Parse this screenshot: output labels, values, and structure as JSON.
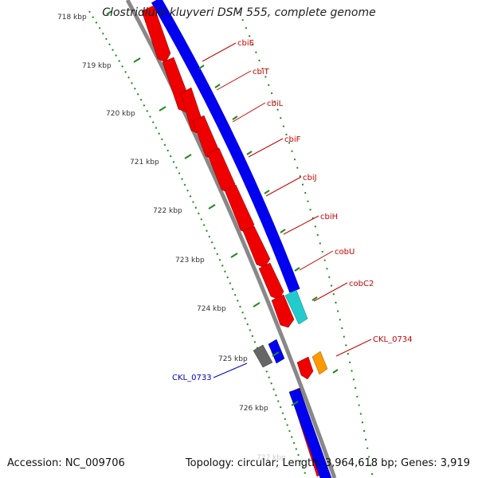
{
  "title": "Clostridium kluyveri DSM 555, complete genome",
  "footer": {
    "accession": "Accession: NC_009706",
    "summary": "Topology: circular; Length: 3,964,618 bp; Genes: 3,919"
  },
  "colors": {
    "backbone": "#888888",
    "forward": "#0000ee",
    "reverse": "#ee0000",
    "ticks": "#228822",
    "labels_red": "#cc0000",
    "labels_blue": "#0000cc"
  },
  "ticks": [
    "718 kbp",
    "719 kbp",
    "720 kbp",
    "721 kbp",
    "722 kbp",
    "723 kbp",
    "724 kbp",
    "725 kbp",
    "726 kbp",
    "727 kbp"
  ],
  "gene_labels": [
    {
      "name": "cbiE",
      "color": "#cc0000"
    },
    {
      "name": "cbiT",
      "color": "#cc0000"
    },
    {
      "name": "cbiL",
      "color": "#cc0000"
    },
    {
      "name": "cbiF",
      "color": "#cc0000"
    },
    {
      "name": "cbiJ",
      "color": "#cc0000"
    },
    {
      "name": "cbiH",
      "color": "#cc0000"
    },
    {
      "name": "cobU",
      "color": "#cc0000"
    },
    {
      "name": "cobC2",
      "color": "#cc0000"
    },
    {
      "name": "CKL_0734",
      "color": "#cc0000"
    },
    {
      "name": "CKL_0733",
      "color": "#0000cc"
    }
  ]
}
